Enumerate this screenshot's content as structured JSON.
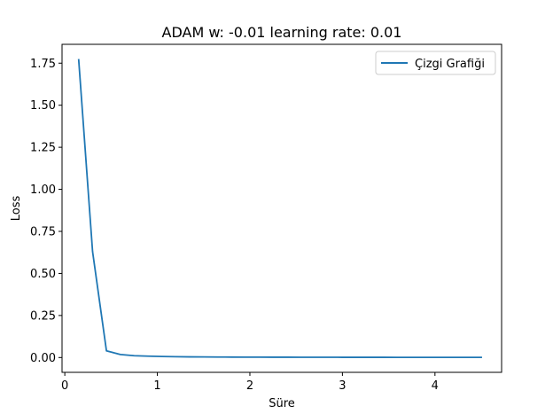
{
  "chart_data": {
    "type": "line",
    "title": "ADAM w: -0.01 learning rate: 0.01",
    "xlabel": "Süre",
    "ylabel": "Loss",
    "xlim": [
      -0.03,
      4.72
    ],
    "ylim": [
      -0.088,
      1.862
    ],
    "xticks": [
      0,
      1,
      2,
      3,
      4
    ],
    "yticks": [
      0.0,
      0.25,
      0.5,
      0.75,
      1.0,
      1.25,
      1.5,
      1.75
    ],
    "xtick_labels": [
      "0",
      "1",
      "2",
      "3",
      "4"
    ],
    "ytick_labels": [
      "0.00",
      "0.25",
      "0.50",
      "0.75",
      "1.00",
      "1.25",
      "1.50",
      "1.75"
    ],
    "grid": false,
    "legend_position": "upper right",
    "series": [
      {
        "name": "Çizgi Grafiği",
        "color": "#1f77b4",
        "x": [
          0.15,
          0.3,
          0.45,
          0.6,
          0.75,
          0.9,
          1.05,
          1.2,
          1.35,
          1.5,
          1.65,
          1.8,
          1.95,
          2.1,
          2.25,
          2.4,
          2.55,
          2.7,
          2.85,
          3.0,
          3.15,
          3.3,
          3.45,
          3.6,
          3.75,
          3.9,
          4.05,
          4.2,
          4.35,
          4.5
        ],
        "y": [
          1.77,
          0.63,
          0.04,
          0.018,
          0.011,
          0.008,
          0.006,
          0.005,
          0.004,
          0.0035,
          0.003,
          0.0027,
          0.0024,
          0.0022,
          0.002,
          0.0018,
          0.0017,
          0.0016,
          0.0015,
          0.0014,
          0.0013,
          0.0012,
          0.0012,
          0.0011,
          0.0011,
          0.001,
          0.001,
          0.001,
          0.0009,
          0.0009
        ]
      }
    ]
  }
}
